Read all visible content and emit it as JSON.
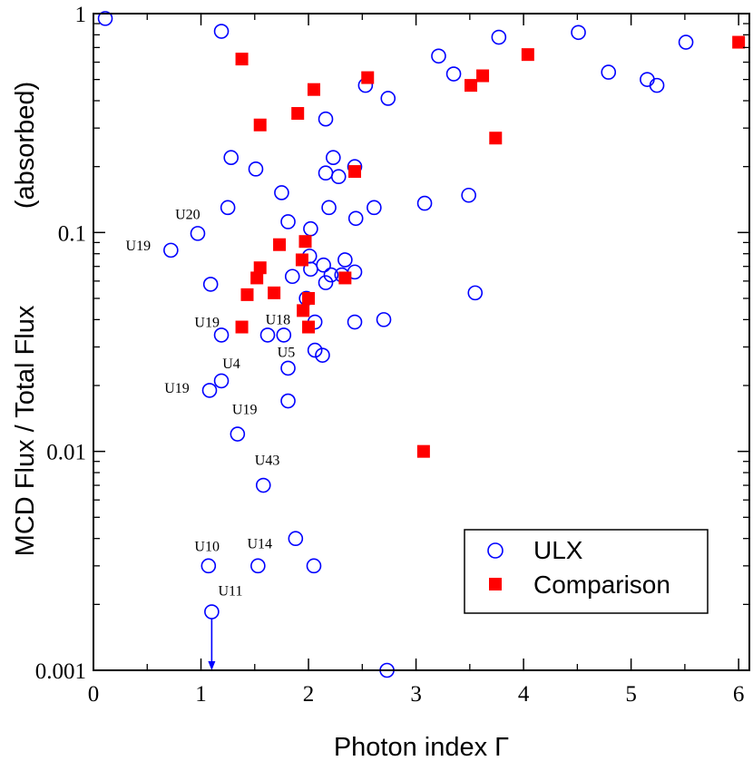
{
  "chart_data": {
    "type": "scatter",
    "title": "",
    "xlabel": "Photon index  Γ",
    "ylabel_left": "MCD Flux / Total Flux",
    "ylabel_right": "(absorbed)",
    "xlim": [
      0,
      6.1
    ],
    "ylim": [
      0.001,
      1
    ],
    "yscale": "log",
    "x_ticks": [
      0,
      1,
      2,
      3,
      4,
      5,
      6
    ],
    "x_tick_labels": [
      "0",
      "1",
      "2",
      "3",
      "4",
      "5",
      "6"
    ],
    "y_ticks": [
      0.001,
      0.01,
      0.1,
      1
    ],
    "y_tick_labels": [
      "0.001",
      "0.01",
      "0.1",
      "1"
    ],
    "grid": false,
    "legend_position": "bottom-right",
    "series": [
      {
        "name": "ULX",
        "marker": "open-circle",
        "color": "#0000ff",
        "points": [
          [
            0.11,
            0.95
          ],
          [
            1.19,
            0.83
          ],
          [
            2.53,
            0.47
          ],
          [
            2.74,
            0.41
          ],
          [
            3.21,
            0.64
          ],
          [
            3.35,
            0.53
          ],
          [
            3.77,
            0.78
          ],
          [
            4.51,
            0.82
          ],
          [
            4.79,
            0.54
          ],
          [
            5.15,
            0.5
          ],
          [
            5.24,
            0.47
          ],
          [
            5.51,
            0.74
          ],
          [
            2.16,
            0.33
          ],
          [
            1.28,
            0.22
          ],
          [
            1.51,
            0.195
          ],
          [
            2.23,
            0.22
          ],
          [
            2.16,
            0.187
          ],
          [
            2.28,
            0.18
          ],
          [
            2.43,
            0.2
          ],
          [
            1.75,
            0.152
          ],
          [
            1.25,
            0.13
          ],
          [
            2.19,
            0.13
          ],
          [
            2.44,
            0.116
          ],
          [
            2.61,
            0.13
          ],
          [
            3.08,
            0.136
          ],
          [
            3.49,
            0.148
          ],
          [
            1.81,
            0.112
          ],
          [
            2.02,
            0.104
          ],
          [
            0.97,
            0.099
          ],
          [
            0.72,
            0.083
          ],
          [
            2.01,
            0.078
          ],
          [
            2.34,
            0.075
          ],
          [
            2.14,
            0.071
          ],
          [
            2.02,
            0.068
          ],
          [
            2.43,
            0.066
          ],
          [
            1.85,
            0.063
          ],
          [
            2.21,
            0.064
          ],
          [
            2.31,
            0.064
          ],
          [
            2.16,
            0.059
          ],
          [
            1.09,
            0.058
          ],
          [
            3.55,
            0.053
          ],
          [
            1.98,
            0.05
          ],
          [
            2.06,
            0.039
          ],
          [
            2.43,
            0.039
          ],
          [
            2.7,
            0.04
          ],
          [
            1.19,
            0.034
          ],
          [
            1.62,
            0.034
          ],
          [
            1.77,
            0.034
          ],
          [
            2.06,
            0.029
          ],
          [
            2.13,
            0.0275
          ],
          [
            1.81,
            0.024
          ],
          [
            1.19,
            0.021
          ],
          [
            1.08,
            0.019
          ],
          [
            1.81,
            0.017
          ],
          [
            1.34,
            0.012
          ],
          [
            1.58,
            0.007
          ],
          [
            1.88,
            0.004
          ],
          [
            1.07,
            0.003
          ],
          [
            1.53,
            0.003
          ],
          [
            2.05,
            0.003
          ],
          [
            1.1,
            0.00185
          ],
          [
            2.73,
            0.001
          ]
        ]
      },
      {
        "name": "Comparison",
        "marker": "filled-square",
        "color": "#ff0000",
        "points": [
          [
            1.38,
            0.62
          ],
          [
            2.55,
            0.51
          ],
          [
            4.04,
            0.65
          ],
          [
            6.0,
            0.74
          ],
          [
            3.62,
            0.52
          ],
          [
            3.51,
            0.47
          ],
          [
            2.05,
            0.45
          ],
          [
            1.55,
            0.31
          ],
          [
            1.9,
            0.35
          ],
          [
            3.74,
            0.27
          ],
          [
            2.43,
            0.19
          ],
          [
            1.73,
            0.088
          ],
          [
            1.97,
            0.091
          ],
          [
            1.94,
            0.075
          ],
          [
            1.55,
            0.069
          ],
          [
            1.52,
            0.062
          ],
          [
            2.34,
            0.062
          ],
          [
            1.68,
            0.053
          ],
          [
            1.43,
            0.052
          ],
          [
            2.0,
            0.05
          ],
          [
            1.95,
            0.044
          ],
          [
            1.38,
            0.037
          ],
          [
            2.0,
            0.037
          ],
          [
            3.07,
            0.01
          ]
        ]
      }
    ],
    "annotations": [
      {
        "text": "U20",
        "x": 0.76,
        "y": 0.115
      },
      {
        "text": "U19",
        "x": 0.3,
        "y": 0.083
      },
      {
        "text": "U19",
        "x": 0.94,
        "y": 0.037
      },
      {
        "text": "U18",
        "x": 1.6,
        "y": 0.038
      },
      {
        "text": "U5",
        "x": 1.71,
        "y": 0.027
      },
      {
        "text": "U4",
        "x": 1.2,
        "y": 0.024
      },
      {
        "text": "U19",
        "x": 0.66,
        "y": 0.0185
      },
      {
        "text": "U19",
        "x": 1.29,
        "y": 0.0148
      },
      {
        "text": "U43",
        "x": 1.5,
        "y": 0.0087
      },
      {
        "text": "U10",
        "x": 0.94,
        "y": 0.0035
      },
      {
        "text": "U14",
        "x": 1.43,
        "y": 0.0036
      },
      {
        "text": "U11",
        "x": 1.16,
        "y": 0.0022
      }
    ],
    "upper_limit_arrow": {
      "x": 1.1,
      "from": 0.00185,
      "to": 0.001,
      "color": "#0000ff"
    }
  }
}
